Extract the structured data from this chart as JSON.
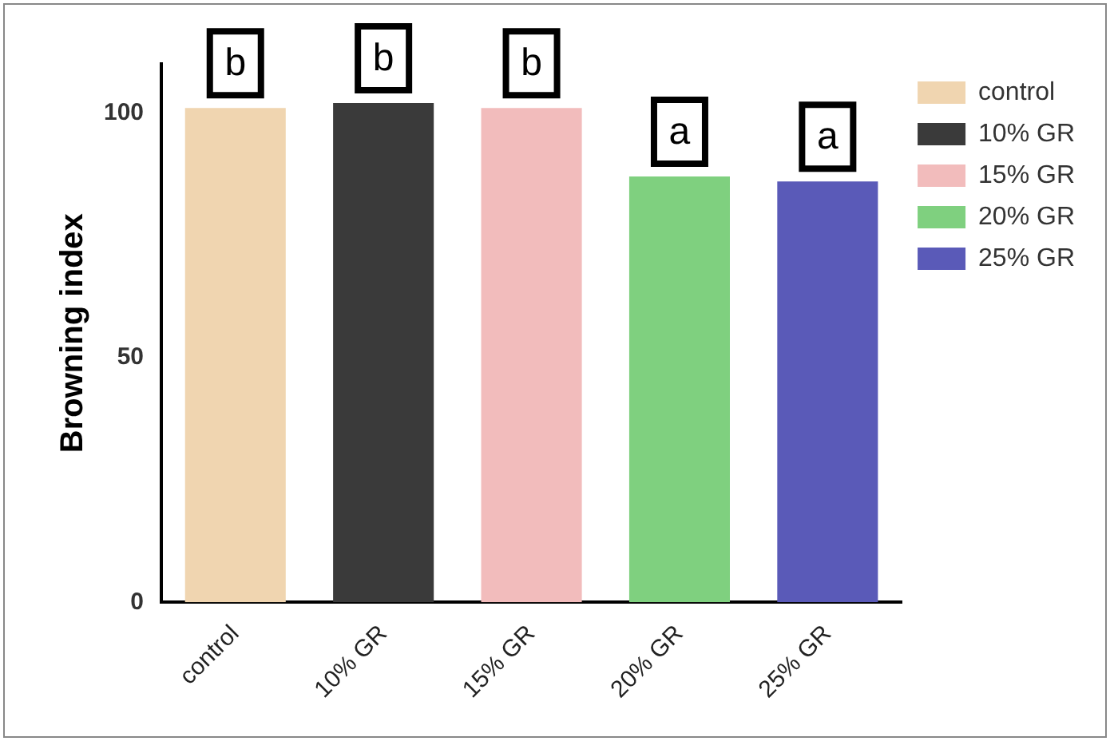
{
  "chart_data": {
    "type": "bar",
    "ylabel": "Browning index",
    "categories": [
      "control",
      "10% GR",
      "15% GR",
      "20% GR",
      "25% GR"
    ],
    "series": [
      {
        "name": "control",
        "color": "#f0d5b0",
        "values": [
          101,
          null,
          null,
          null,
          null
        ]
      },
      {
        "name": "10% GR",
        "color": "#3a3a3a",
        "values": [
          null,
          102,
          null,
          null,
          null
        ]
      },
      {
        "name": "15% GR",
        "color": "#f2bcbc",
        "values": [
          null,
          null,
          101,
          null,
          null
        ]
      },
      {
        "name": "20% GR",
        "color": "#7fd07f",
        "values": [
          null,
          null,
          null,
          87,
          null
        ]
      },
      {
        "name": "25% GR",
        "color": "#5a5ab8",
        "values": [
          null,
          null,
          null,
          null,
          86
        ]
      }
    ],
    "ylim": [
      0,
      110
    ],
    "yticks": [
      0,
      50,
      100
    ],
    "grid": false,
    "legend": "right",
    "annotations": [
      {
        "text": "b",
        "x": "control",
        "y": 101
      },
      {
        "text": "b",
        "x": "10% GR",
        "y": 102
      },
      {
        "text": "b",
        "x": "15% GR",
        "y": 101
      },
      {
        "text": "a",
        "x": "20% GR",
        "y": 87
      },
      {
        "text": "a",
        "x": "25% GR",
        "y": 86
      }
    ]
  }
}
